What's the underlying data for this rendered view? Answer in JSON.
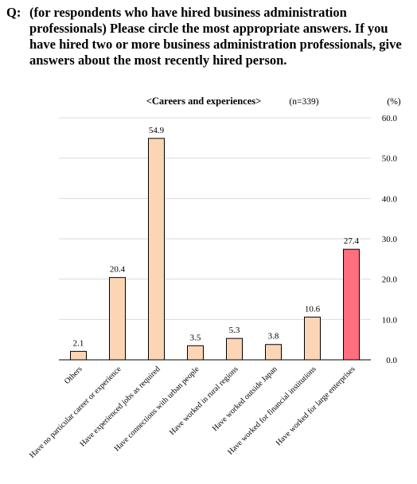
{
  "question": {
    "prefix": "Q:",
    "text": "(for respondents who have hired business administration professionals) Please circle the most appropriate answers. If you have hired two or more business administration professionals, give answers about the most recently hired person."
  },
  "chart_data": {
    "type": "bar",
    "title": "<Careers and experiences>",
    "sample_size": "(n=339)",
    "unit_label": "(%)",
    "ylim": [
      0,
      60
    ],
    "y_ticks": [
      "0.0",
      "10.0",
      "20.0",
      "30.0",
      "40.0",
      "50.0",
      "60.0"
    ],
    "y_axis_side": "right",
    "grid": true,
    "categories": [
      "Others",
      "Have no particular career or experience",
      "Have experienced jobs as required",
      "Have connections with urban people",
      "Have worked in rural regions",
      "Have worked outside Japan",
      "Have worked for financial institutions",
      "Have worked for large enterprises"
    ],
    "values": [
      2.1,
      20.4,
      54.9,
      3.5,
      5.3,
      3.8,
      10.6,
      27.4
    ],
    "value_labels": [
      "2.1",
      "20.4",
      "54.9",
      "3.5",
      "5.3",
      "3.8",
      "10.6",
      "27.4"
    ],
    "bar_colors": [
      "#fcd5b4",
      "#fcd5b4",
      "#fcd5b4",
      "#fcd5b4",
      "#fcd5b4",
      "#fcd5b4",
      "#fcd5b4",
      "#ff6f7d"
    ],
    "bar_outline_color": "#000000",
    "grid_color": "#d9d9d9"
  }
}
